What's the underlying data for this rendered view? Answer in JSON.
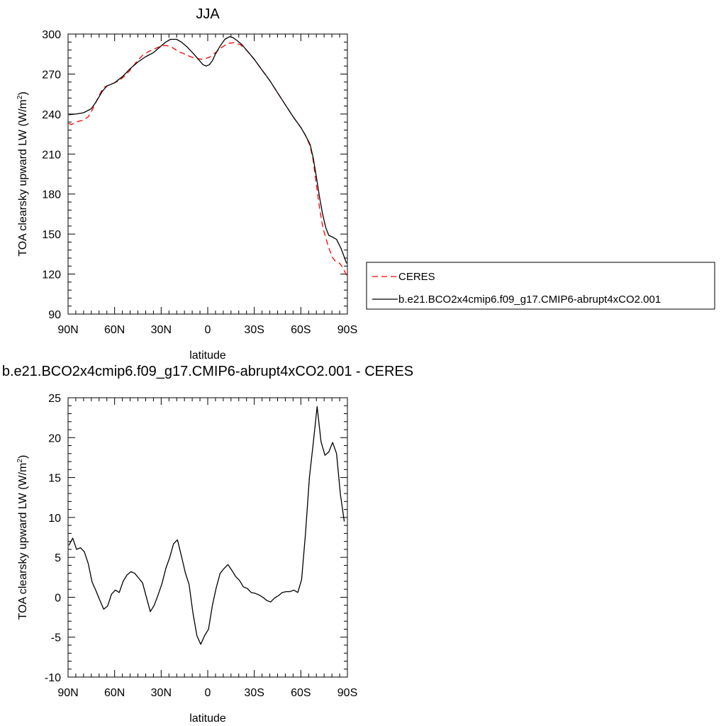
{
  "chart_data": [
    {
      "type": "line",
      "title": "JJA",
      "xlabel": "latitude",
      "ylabel": "TOA clearsky upward LW (W/m",
      "ylabel_sup": "2",
      "ylabel_tail": ")",
      "xlim": [
        -90,
        90
      ],
      "ylim": [
        90,
        300
      ],
      "x_tick_values": [
        -90,
        -60,
        -30,
        0,
        30,
        60,
        90
      ],
      "x_tick_labels": [
        "90N",
        "60N",
        "30N",
        "0",
        "30S",
        "60S",
        "90S"
      ],
      "y_tick_values": [
        90,
        120,
        150,
        180,
        210,
        240,
        270,
        300
      ],
      "y_tick_labels": [
        "90",
        "120",
        "150",
        "180",
        "210",
        "240",
        "270",
        "300"
      ],
      "legend_position": "right",
      "series": [
        {
          "name": "CERES",
          "color": "#ff0000",
          "dash": "dashed",
          "points": [
            [
              -89.5,
              233
            ],
            [
              -88,
              232
            ],
            [
              -85,
              234
            ],
            [
              -80,
              235.5
            ],
            [
              -77,
              238
            ],
            [
              -74,
              244
            ],
            [
              -70,
              254
            ],
            [
              -67,
              260
            ],
            [
              -63,
              262
            ],
            [
              -58,
              264.5
            ],
            [
              -54,
              268
            ],
            [
              -50,
              273
            ],
            [
              -46,
              279
            ],
            [
              -42,
              284
            ],
            [
              -38,
              287
            ],
            [
              -34,
              289
            ],
            [
              -30,
              291
            ],
            [
              -27,
              291.5
            ],
            [
              -23,
              290
            ],
            [
              -19,
              287
            ],
            [
              -15,
              285
            ],
            [
              -11,
              283
            ],
            [
              -7,
              281.5
            ],
            [
              -3,
              281
            ],
            [
              1,
              282.5
            ],
            [
              5,
              286
            ],
            [
              9,
              290
            ],
            [
              13,
              293
            ],
            [
              17,
              293.5
            ],
            [
              21,
              292
            ],
            [
              25,
              288
            ],
            [
              30,
              281
            ],
            [
              35,
              273
            ],
            [
              40,
              265
            ],
            [
              45,
              256
            ],
            [
              50,
              247
            ],
            [
              55,
              238
            ],
            [
              60,
              230
            ],
            [
              63,
              224
            ],
            [
              66,
              216
            ],
            [
              68,
              205
            ],
            [
              70,
              187
            ],
            [
              72,
              170
            ],
            [
              74,
              156
            ],
            [
              76,
              147
            ],
            [
              78,
              140
            ],
            [
              80,
              133
            ],
            [
              82,
              130
            ],
            [
              85,
              128
            ],
            [
              87,
              125
            ],
            [
              89.5,
              119
            ]
          ]
        },
        {
          "name": "b.e21.BCO2x4cmip6.f09_g17.CMIP6-abrupt4xCO2.001",
          "color": "#000000",
          "dash": "solid",
          "points": [
            [
              -89.5,
              239.5
            ],
            [
              -85,
              240
            ],
            [
              -80,
              241
            ],
            [
              -75,
              244
            ],
            [
              -72,
              249
            ],
            [
              -68,
              257
            ],
            [
              -65,
              261
            ],
            [
              -60,
              263.5
            ],
            [
              -55,
              268
            ],
            [
              -50,
              274
            ],
            [
              -45,
              279
            ],
            [
              -40,
              283
            ],
            [
              -35,
              286
            ],
            [
              -31,
              290
            ],
            [
              -27,
              294
            ],
            [
              -24,
              296
            ],
            [
              -20,
              296
            ],
            [
              -17,
              294
            ],
            [
              -13,
              290
            ],
            [
              -9,
              285
            ],
            [
              -6,
              281
            ],
            [
              -3,
              277
            ],
            [
              -1,
              276
            ],
            [
              1,
              277
            ],
            [
              3,
              280
            ],
            [
              5,
              285
            ],
            [
              8,
              291
            ],
            [
              11,
              296
            ],
            [
              14,
              298
            ],
            [
              16,
              297.5
            ],
            [
              19,
              295
            ],
            [
              22,
              292
            ],
            [
              25,
              288
            ],
            [
              30,
              281
            ],
            [
              35,
              273
            ],
            [
              40,
              265
            ],
            [
              45,
              256
            ],
            [
              50,
              247
            ],
            [
              55,
              238
            ],
            [
              60,
              230
            ],
            [
              63,
              224
            ],
            [
              66,
              217
            ],
            [
              68,
              207
            ],
            [
              70,
              193
            ],
            [
              72,
              178
            ],
            [
              74,
              165
            ],
            [
              76,
              155
            ],
            [
              78,
              149
            ],
            [
              80,
              148
            ],
            [
              83,
              146
            ],
            [
              86,
              139
            ],
            [
              89.5,
              128
            ]
          ]
        }
      ]
    },
    {
      "type": "line",
      "title": "b.e21.BCO2x4cmip6.f09_g17.CMIP6-abrupt4xCO2.001 - CERES",
      "xlabel": "latitude",
      "ylabel": "TOA clearsky upward LW (W/m",
      "ylabel_sup": "2",
      "ylabel_tail": ")",
      "xlim": [
        -90,
        90
      ],
      "ylim": [
        -10,
        25
      ],
      "x_tick_values": [
        -90,
        -60,
        -30,
        0,
        30,
        60,
        90
      ],
      "x_tick_labels": [
        "90N",
        "60N",
        "30N",
        "0",
        "30S",
        "60S",
        "90S"
      ],
      "y_tick_values": [
        -10,
        -5,
        0,
        5,
        10,
        15,
        20,
        25
      ],
      "y_tick_labels": [
        "-10",
        "-5",
        "0",
        "5",
        "10",
        "15",
        "20",
        "25"
      ],
      "series": [
        {
          "color": "#000000",
          "dash": "solid",
          "points": [
            [
              -89.5,
              6.5
            ],
            [
              -87,
              7.4
            ],
            [
              -84.5,
              6
            ],
            [
              -82,
              6.2
            ],
            [
              -79.5,
              5.7
            ],
            [
              -77,
              4.2
            ],
            [
              -74.5,
              1.9
            ],
            [
              -72,
              0.8
            ],
            [
              -69.5,
              -0.4
            ],
            [
              -67,
              -1.5
            ],
            [
              -64.5,
              -1.1
            ],
            [
              -62,
              0.4
            ],
            [
              -59.5,
              0.9
            ],
            [
              -57,
              0.6
            ],
            [
              -54.5,
              2
            ],
            [
              -52,
              2.8
            ],
            [
              -49.5,
              3.2
            ],
            [
              -47,
              3
            ],
            [
              -44.5,
              2.4
            ],
            [
              -42,
              1.8
            ],
            [
              -39.5,
              0
            ],
            [
              -37,
              -1.8
            ],
            [
              -34.5,
              -1
            ],
            [
              -32,
              0.3
            ],
            [
              -29.5,
              1.7
            ],
            [
              -27,
              3.6
            ],
            [
              -24.5,
              5
            ],
            [
              -22,
              6.7
            ],
            [
              -19.5,
              7.2
            ],
            [
              -17,
              5.2
            ],
            [
              -14.5,
              3.1
            ],
            [
              -12,
              1.6
            ],
            [
              -9.5,
              -2
            ],
            [
              -7,
              -4.8
            ],
            [
              -4.5,
              -5.9
            ],
            [
              -2,
              -4.8
            ],
            [
              0.5,
              -4
            ],
            [
              3,
              -1
            ],
            [
              5.5,
              1.2
            ],
            [
              8,
              3
            ],
            [
              10.5,
              3.6
            ],
            [
              13,
              4.1
            ],
            [
              15.5,
              3.4
            ],
            [
              18,
              2.6
            ],
            [
              20.5,
              2.1
            ],
            [
              23,
              1.3
            ],
            [
              25.5,
              1.1
            ],
            [
              28,
              0.6
            ],
            [
              30.5,
              0.5
            ],
            [
              33,
              0.3
            ],
            [
              35.5,
              0
            ],
            [
              38,
              -0.4
            ],
            [
              40.5,
              -0.6
            ],
            [
              43,
              -0.1
            ],
            [
              45.5,
              0.2
            ],
            [
              48,
              0.6
            ],
            [
              50.5,
              0.7
            ],
            [
              53,
              0.7
            ],
            [
              55.5,
              0.9
            ],
            [
              58,
              0.6
            ],
            [
              60.5,
              2.2
            ],
            [
              63,
              8
            ],
            [
              65.5,
              15
            ],
            [
              68,
              19.3
            ],
            [
              70.5,
              23.9
            ],
            [
              73,
              19.5
            ],
            [
              75.5,
              17.8
            ],
            [
              78,
              18.2
            ],
            [
              80.5,
              19.4
            ],
            [
              83,
              18
            ],
            [
              85.5,
              12.9
            ],
            [
              88,
              9.5
            ]
          ]
        }
      ]
    }
  ],
  "legend": {
    "entries": [
      {
        "label": "CERES",
        "color": "#ff0000",
        "dash": "dashed"
      },
      {
        "label": "b.e21.BCO2x4cmip6.f09_g17.CMIP6-abrupt4xCO2.001",
        "color": "#000000",
        "dash": "solid"
      }
    ]
  }
}
